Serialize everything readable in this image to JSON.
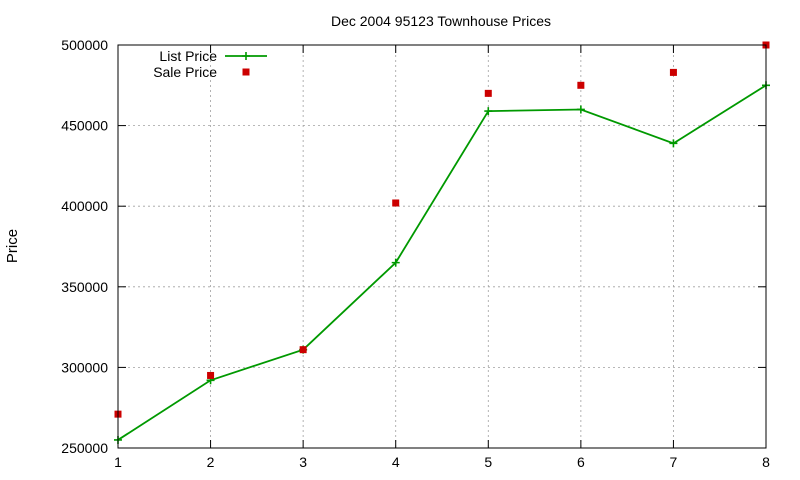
{
  "chart_data": {
    "type": "line",
    "title": "Dec 2004 95123 Townhouse Prices",
    "xlabel": "",
    "ylabel": "Price",
    "xlim": [
      1,
      8
    ],
    "ylim": [
      250000,
      500000
    ],
    "x_ticks": [
      1,
      2,
      3,
      4,
      5,
      6,
      7,
      8
    ],
    "y_ticks": [
      250000,
      300000,
      350000,
      400000,
      450000,
      500000
    ],
    "grid": true,
    "legend_position": "top-left",
    "series": [
      {
        "name": "List Price",
        "style": "linespoints",
        "marker": "plus",
        "color": "#009900",
        "x": [
          1,
          2,
          3,
          4,
          5,
          6,
          7,
          8
        ],
        "values": [
          255000,
          292000,
          311000,
          365000,
          459000,
          460000,
          439000,
          475000
        ]
      },
      {
        "name": "Sale Price",
        "style": "points",
        "marker": "square",
        "color": "#cc0000",
        "x": [
          1,
          2,
          3,
          4,
          5,
          6,
          7,
          8
        ],
        "values": [
          271000,
          295000,
          311000,
          402000,
          470000,
          475000,
          483000,
          500000
        ]
      }
    ]
  }
}
